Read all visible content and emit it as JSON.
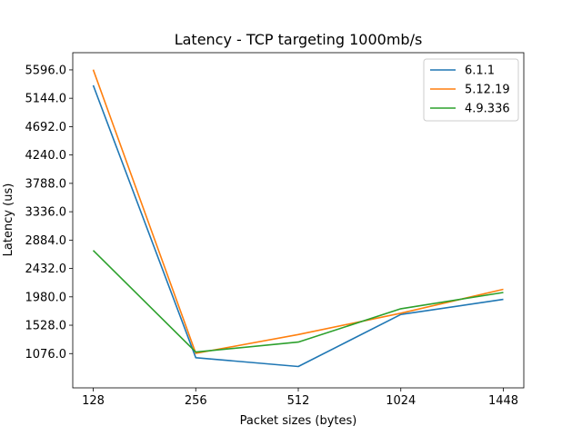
{
  "chart_data": {
    "type": "line",
    "title": "Latency - TCP targeting 1000mb/s",
    "xlabel": "Packet sizes (bytes)",
    "ylabel": "Latency (us)",
    "categories": [
      "128",
      "256",
      "512",
      "1024",
      "1448"
    ],
    "yticks": [
      "1076.0",
      "1528.0",
      "1980.0",
      "2432.0",
      "2884.0",
      "3336.0",
      "3788.0",
      "4240.0",
      "4692.0",
      "5144.0",
      "5596.0"
    ],
    "ylim": [
      530,
      5870
    ],
    "grid": false,
    "legend_position": "top-right",
    "series": [
      {
        "name": "6.1.1",
        "color": "#1f77b4",
        "values": [
          5350,
          1010,
          870,
          1700,
          1940
        ]
      },
      {
        "name": "5.12.19",
        "color": "#ff7f0e",
        "values": [
          5600,
          1080,
          1380,
          1720,
          2100
        ]
      },
      {
        "name": "4.9.336",
        "color": "#2ca02c",
        "values": [
          2720,
          1100,
          1260,
          1790,
          2050
        ]
      }
    ]
  }
}
